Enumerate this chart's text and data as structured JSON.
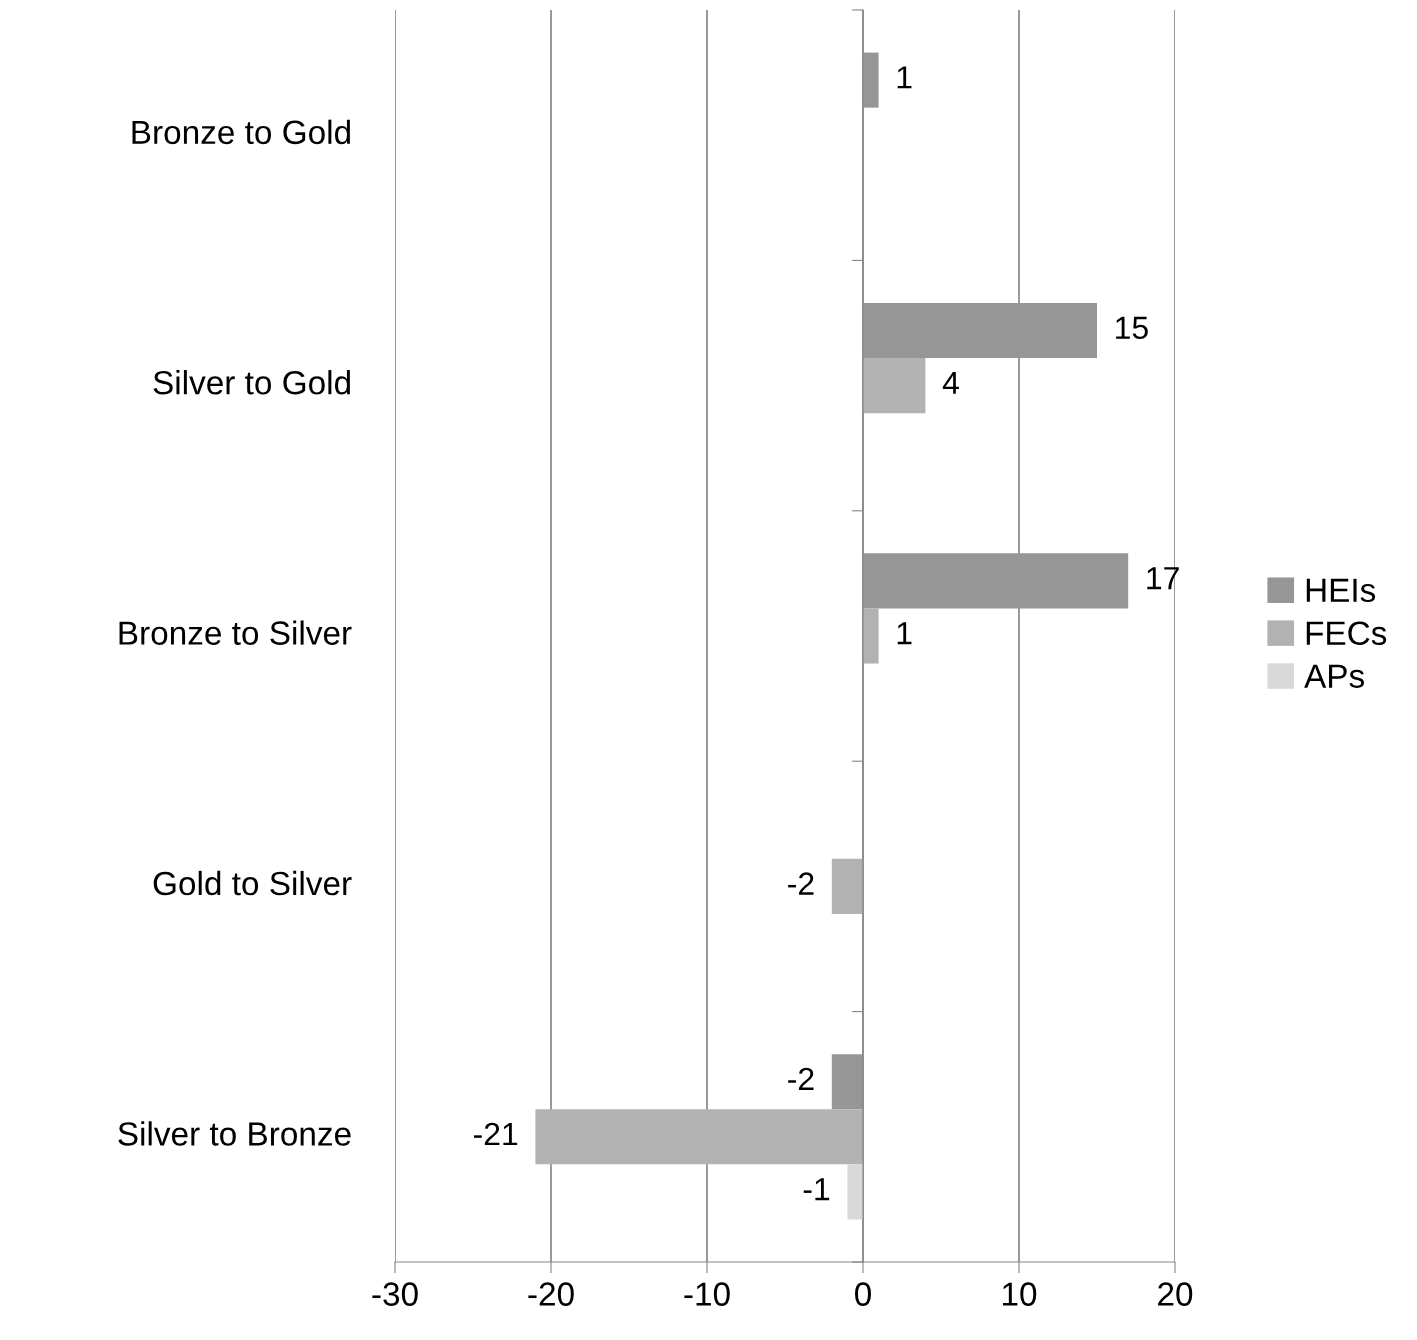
{
  "chart_data": {
    "type": "bar",
    "orientation": "horizontal",
    "categories": [
      "Bronze to Gold",
      "Silver to Gold",
      "Bronze to Silver",
      "Gold to Silver",
      "Silver to Bronze"
    ],
    "series": [
      {
        "name": "HEIs",
        "color": "#969696",
        "values": [
          1,
          15,
          17,
          null,
          -2
        ]
      },
      {
        "name": "FECs",
        "color": "#b2b2b2",
        "values": [
          null,
          4,
          1,
          -2,
          -21
        ]
      },
      {
        "name": "APs",
        "color": "#d9d9d9",
        "values": [
          null,
          null,
          null,
          null,
          -1
        ]
      }
    ],
    "xlim": [
      -30,
      20
    ],
    "xticks": [
      -30,
      -20,
      -10,
      0,
      10,
      20
    ],
    "grid": "x",
    "legend": "right",
    "data_labels": true
  }
}
